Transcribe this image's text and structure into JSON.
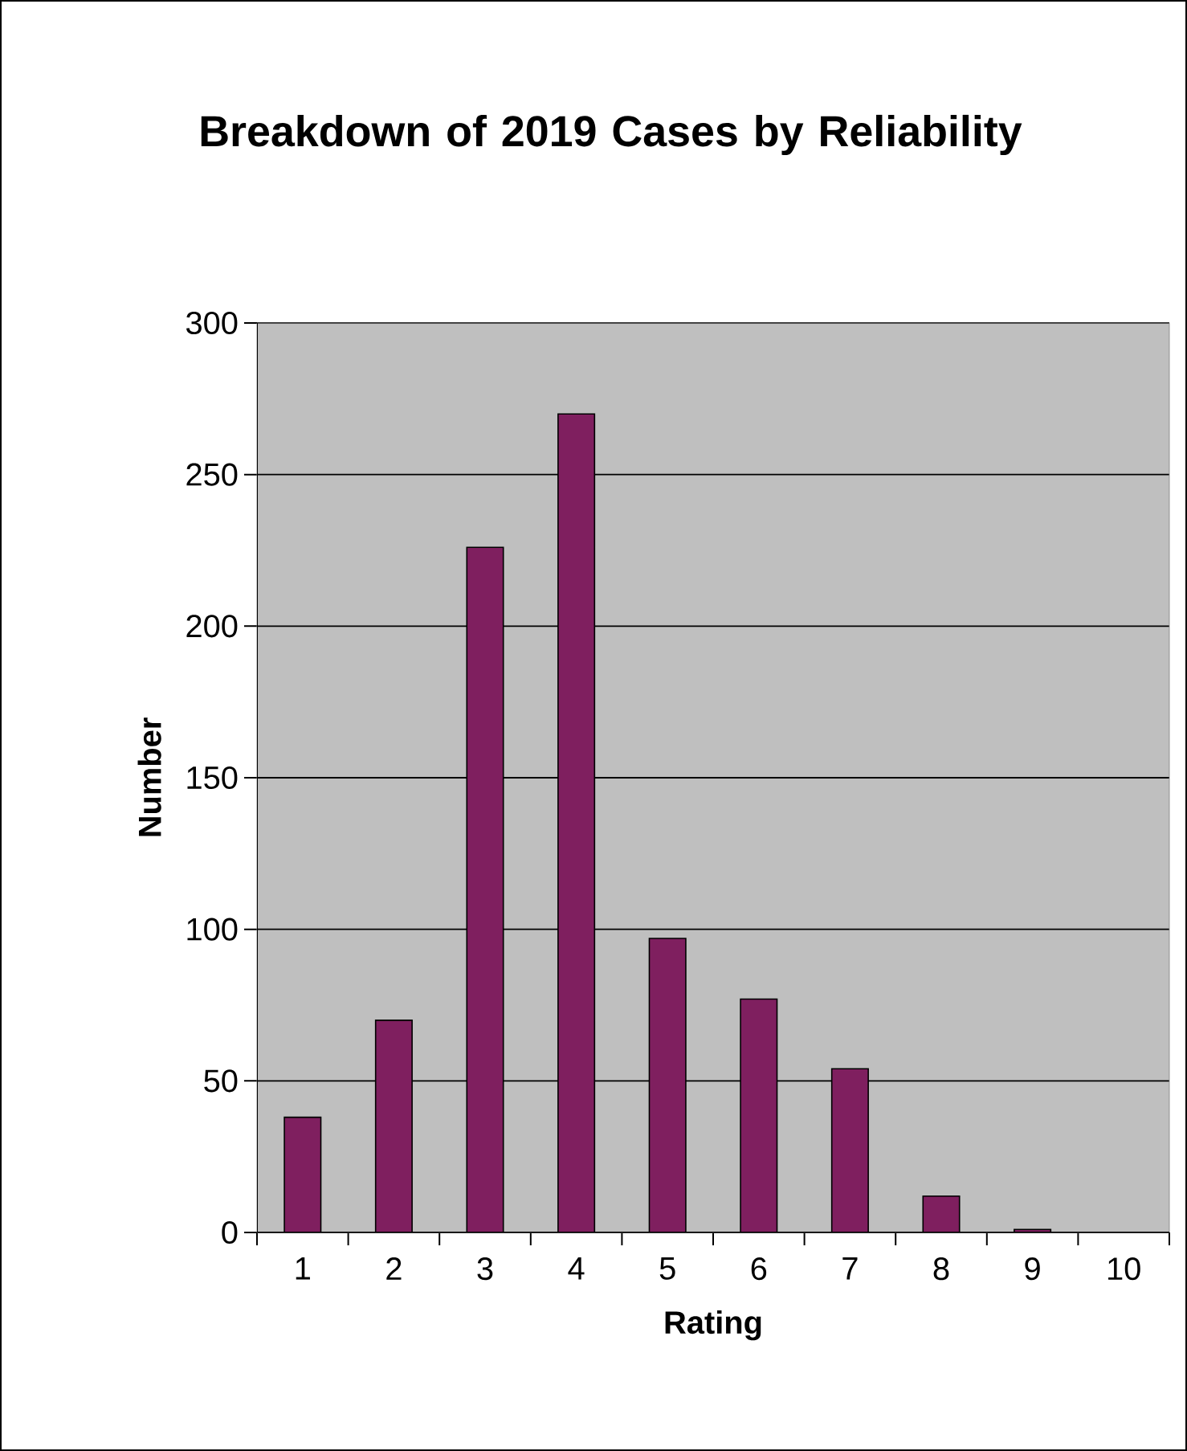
{
  "chart_data": {
    "type": "bar",
    "title": "Breakdown of 2019 Cases by Reliability",
    "xlabel": "Rating",
    "ylabel": "Number",
    "categories": [
      "1",
      "2",
      "3",
      "4",
      "5",
      "6",
      "7",
      "8",
      "9",
      "10"
    ],
    "values": [
      38,
      70,
      226,
      270,
      97,
      77,
      54,
      12,
      1,
      0
    ],
    "color": "#7f1f5f",
    "ylim": [
      0,
      300
    ],
    "yticks": [
      0,
      50,
      100,
      150,
      200,
      250,
      300
    ],
    "grid": "y"
  }
}
